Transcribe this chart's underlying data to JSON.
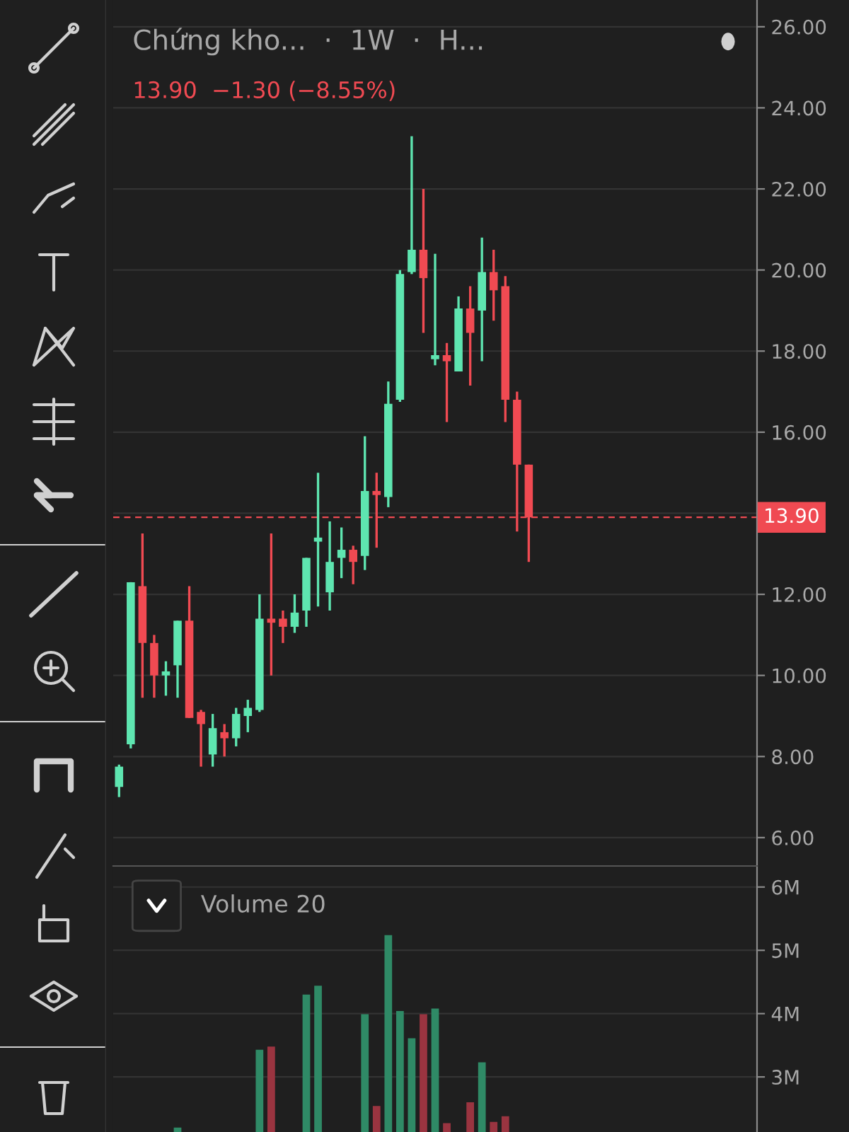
{
  "chart_data": [
    {
      "type": "candlestick",
      "title": "Chứng kho...  ·  1W  ·  H...",
      "subtitle": "13.90  −1.30 (−8.55%)",
      "categories": [
        null,
        null,
        null,
        null,
        null,
        null,
        null,
        null,
        null,
        null,
        null,
        null,
        null,
        null,
        null,
        null,
        null,
        null,
        null,
        null,
        null,
        null,
        null,
        null,
        null,
        null,
        null,
        null,
        null,
        null,
        null,
        null,
        null,
        null,
        null,
        null,
        null,
        null,
        null,
        null,
        null,
        null,
        null,
        null,
        null,
        null,
        null,
        null,
        null,
        null,
        null,
        null,
        null,
        null,
        null
      ],
      "ohlc": [
        [
          7.25,
          7.8,
          7.0,
          7.75
        ],
        [
          8.3,
          12.3,
          8.2,
          12.3
        ],
        [
          12.2,
          13.5,
          9.45,
          10.8
        ],
        [
          10.8,
          11.0,
          9.45,
          10.0
        ],
        [
          10.0,
          10.35,
          9.5,
          10.1
        ],
        [
          10.25,
          11.35,
          9.45,
          11.35
        ],
        [
          11.35,
          12.2,
          8.95,
          8.95
        ],
        [
          9.1,
          9.15,
          7.75,
          8.8
        ],
        [
          8.05,
          9.05,
          7.75,
          8.7
        ],
        [
          8.6,
          8.8,
          8.0,
          8.45
        ],
        [
          8.45,
          9.2,
          8.25,
          9.05
        ],
        [
          9.0,
          9.4,
          8.6,
          9.2
        ],
        [
          9.15,
          12.0,
          9.1,
          11.4
        ],
        [
          11.4,
          13.5,
          10.0,
          11.3
        ],
        [
          11.4,
          11.6,
          10.8,
          11.2
        ],
        [
          11.2,
          12.0,
          11.05,
          11.55
        ],
        [
          11.6,
          12.9,
          11.2,
          12.9
        ],
        [
          13.3,
          15.0,
          11.7,
          13.4
        ],
        [
          12.05,
          13.8,
          11.6,
          12.8
        ],
        [
          12.9,
          13.65,
          12.4,
          13.1
        ],
        [
          13.1,
          13.2,
          12.25,
          12.8
        ],
        [
          12.95,
          15.9,
          12.6,
          14.55
        ],
        [
          14.55,
          15.0,
          13.15,
          14.45
        ],
        [
          14.4,
          17.25,
          14.15,
          16.7
        ],
        [
          16.8,
          20.0,
          16.75,
          19.9
        ],
        [
          19.95,
          23.3,
          19.9,
          20.5
        ],
        [
          20.5,
          22.0,
          18.45,
          19.8
        ],
        [
          17.8,
          20.4,
          17.65,
          17.9
        ],
        [
          17.9,
          18.2,
          16.25,
          17.75
        ],
        [
          17.5,
          19.35,
          17.5,
          19.05
        ],
        [
          19.05,
          19.6,
          17.15,
          18.45
        ],
        [
          19.0,
          20.8,
          17.75,
          19.95
        ],
        [
          19.95,
          20.5,
          18.75,
          19.5
        ],
        [
          19.6,
          19.85,
          16.25,
          16.8
        ],
        [
          16.8,
          17.0,
          13.55,
          15.2
        ],
        [
          15.2,
          15.2,
          12.8,
          13.9
        ],
        null,
        null,
        null,
        null,
        null,
        null,
        null,
        null,
        null,
        null,
        null,
        null,
        null,
        null,
        null,
        null,
        null,
        null,
        null
      ],
      "colors": [
        "#5ee5b0",
        "#5ee5b0",
        "#f04a52",
        "#f04a52",
        "#5ee5b0",
        "#5ee5b0",
        "#f04a52",
        "#f04a52",
        "#5ee5b0",
        "#f04a52",
        "#5ee5b0",
        "#5ee5b0",
        "#5ee5b0",
        "#f04a52",
        "#f04a52",
        "#5ee5b0",
        "#5ee5b0",
        "#5ee5b0",
        "#5ee5b0",
        "#5ee5b0",
        "#f04a52",
        "#5ee5b0",
        "#f04a52",
        "#5ee5b0",
        "#5ee5b0",
        "#5ee5b0",
        "#f04a52",
        "#5ee5b0",
        "#f04a52",
        "#5ee5b0",
        "#f04a52",
        "#5ee5b0",
        "#f04a52",
        "#f04a52",
        "#f04a52",
        "#f04a52",
        null,
        null,
        null,
        null,
        null,
        null,
        null,
        null,
        null,
        null,
        null,
        null,
        null,
        null,
        null,
        null,
        null,
        null,
        null
      ],
      "ylim": [
        5.3,
        26.66
      ],
      "yticks": [
        {
          "value": 6,
          "label": "6.00"
        },
        {
          "value": 8,
          "label": "8.00"
        },
        {
          "value": 10,
          "label": "10.00"
        },
        {
          "value": 12,
          "label": "12.00"
        },
        {
          "value": 14,
          "label": null
        },
        {
          "value": 16,
          "label": "16.00"
        },
        {
          "value": 18,
          "label": "18.00"
        },
        {
          "value": 20,
          "label": "20.00"
        },
        {
          "value": 22,
          "label": "22.00"
        },
        {
          "value": 24,
          "label": "24.00"
        },
        {
          "value": 26,
          "label": "26.00"
        }
      ],
      "ref_lines": [
        {
          "axis": "y",
          "value": 13.9,
          "label": "13.90",
          "color": "#f04a52",
          "line_style": "dashed"
        }
      ],
      "grid": "y",
      "tick_labels": "y"
    },
    {
      "type": "bar",
      "title": "Volume 20",
      "categories": [
        null,
        null,
        null,
        null,
        null,
        null,
        null,
        null,
        null,
        null,
        null,
        null,
        null,
        null,
        null,
        null,
        null,
        null,
        null,
        null,
        null,
        null,
        null,
        null,
        null,
        null,
        null,
        null,
        null,
        null,
        null,
        null,
        null,
        null,
        null,
        null,
        null,
        null,
        null,
        null,
        null,
        null,
        null,
        null,
        null,
        null,
        null,
        null,
        null,
        null,
        null,
        null,
        null,
        null,
        null
      ],
      "values": [
        null,
        null,
        null,
        null,
        null,
        2.2,
        null,
        null,
        null,
        null,
        null,
        null,
        3.43,
        3.48,
        null,
        null,
        4.3,
        4.44,
        null,
        null,
        null,
        3.99,
        2.54,
        5.24,
        4.04,
        3.61,
        3.99,
        4.08,
        2.27,
        null,
        2.6,
        3.23,
        2.29,
        2.38,
        null,
        null,
        null,
        null,
        null,
        null,
        null,
        null,
        null,
        null,
        null,
        null,
        null,
        null,
        null,
        null,
        null,
        null,
        null,
        null,
        null
      ],
      "colors": [
        null,
        null,
        null,
        null,
        null,
        "#2f8a66",
        null,
        null,
        null,
        null,
        null,
        null,
        "#2f8a66",
        "#9a3440",
        null,
        null,
        "#2f8a66",
        "#2f8a66",
        null,
        null,
        null,
        "#2f8a66",
        "#9a3440",
        "#2f8a66",
        "#2f8a66",
        "#2f8a66",
        "#9a3440",
        "#2f8a66",
        "#9a3440",
        null,
        "#9a3440",
        "#2f8a66",
        "#9a3440",
        "#9a3440",
        null,
        null,
        null,
        null,
        null,
        null,
        null,
        null,
        null,
        null,
        null,
        null,
        null,
        null,
        null,
        null,
        null,
        null,
        null,
        null,
        null
      ],
      "ylim": [
        2.13,
        6.31
      ],
      "yticks": [
        {
          "value": 3,
          "label": "3M"
        },
        {
          "value": 4,
          "label": "4M"
        },
        {
          "value": 5,
          "label": "5M"
        },
        {
          "value": 6,
          "label": "6M"
        }
      ],
      "grid": "y",
      "tick_labels": "y"
    }
  ]
}
